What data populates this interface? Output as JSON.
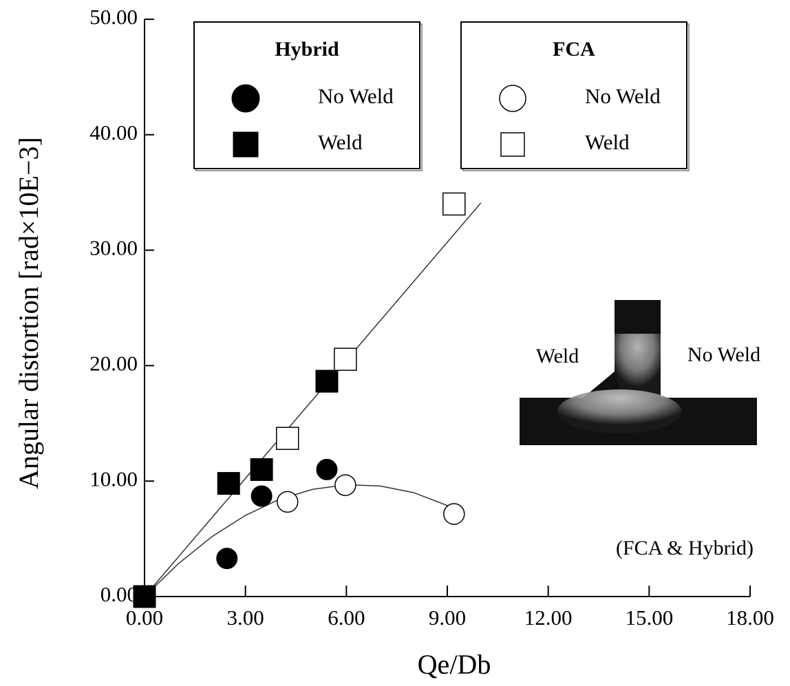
{
  "chart_data": {
    "type": "scatter",
    "x_label": "Qe/Db",
    "y_label": "Angular distortion [rad×10E−3]",
    "xlim": [
      0,
      18
    ],
    "ylim": [
      0,
      50
    ],
    "xticks": [
      {
        "value": 0,
        "label": "0.00"
      },
      {
        "value": 3,
        "label": "3.00"
      },
      {
        "value": 6,
        "label": "6.00"
      },
      {
        "value": 9,
        "label": "9.00"
      },
      {
        "value": 12,
        "label": "12.00"
      },
      {
        "value": 15,
        "label": "15.00"
      },
      {
        "value": 18,
        "label": "18.00"
      }
    ],
    "yticks": [
      {
        "value": 0,
        "label": "0.00"
      },
      {
        "value": 10,
        "label": "10.00"
      },
      {
        "value": 20,
        "label": "20.00"
      },
      {
        "value": 30,
        "label": "30.00"
      },
      {
        "value": 40,
        "label": "40.00"
      },
      {
        "value": 50,
        "label": "50.00"
      }
    ],
    "series": [
      {
        "group": "Hybrid",
        "name": "No Weld",
        "marker": "circle",
        "filled": true,
        "color": "#000000",
        "x": [
          2.45,
          3.48,
          5.42
        ],
        "values": [
          3.3,
          8.7,
          11.0
        ]
      },
      {
        "group": "Hybrid",
        "name": "Weld",
        "marker": "square",
        "filled": true,
        "color": "#000000",
        "x": [
          0,
          2.5,
          3.48,
          5.42
        ],
        "values": [
          0,
          9.8,
          11.0,
          18.65
        ]
      },
      {
        "group": "FCA",
        "name": "No Weld",
        "marker": "circle",
        "filled": false,
        "color": "#000000",
        "x": [
          4.25,
          5.97,
          9.2
        ],
        "values": [
          8.2,
          9.65,
          7.15
        ]
      },
      {
        "group": "FCA",
        "name": "Weld",
        "marker": "square",
        "filled": false,
        "color": "#000000",
        "x": [
          4.25,
          5.97,
          9.2
        ],
        "values": [
          13.7,
          20.55,
          34.0
        ]
      }
    ],
    "trend_lines": [
      {
        "x": [
          0,
          10
        ],
        "values": [
          0,
          34.1
        ]
      },
      {
        "x": [
          0,
          1,
          2,
          3,
          4,
          5,
          6,
          7,
          8,
          9.2
        ],
        "values": [
          0,
          2.83,
          5.18,
          7.03,
          8.41,
          9.29,
          9.68,
          9.58,
          9.0,
          7.66
        ]
      }
    ],
    "annotations": [
      "Weld",
      "No Weld",
      "(FCA & Hybrid)"
    ]
  }
}
